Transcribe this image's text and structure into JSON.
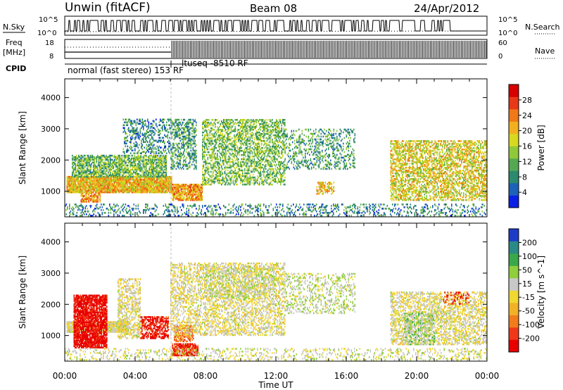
{
  "header": {
    "station": "Unwin (fitACF)",
    "beam": "Beam 08",
    "date": "24/Apr/2012"
  },
  "strip_labels": {
    "nsky": "N.Sky",
    "nsearch": "N.Search",
    "freq_line1": "Freq",
    "freq_line2": "[MHz]",
    "nave": "Nave",
    "cpid": "CPID"
  },
  "strip_axes": {
    "noise_left": [
      "10^5",
      "10^0"
    ],
    "noise_right": [
      "10^5",
      "10^0"
    ],
    "freq_left": [
      "18",
      "8"
    ],
    "nave_right": [
      "60",
      "0"
    ]
  },
  "cpid_labels": {
    "first": "normal (fast stereo) 153 RF",
    "second": "ltuseq -8510 RF"
  },
  "colors": {
    "power": [
      "#0a1fe6",
      "#1c62b8",
      "#2c8a6e",
      "#55a852",
      "#8fc93a",
      "#d8d820",
      "#f2b020",
      "#f07818",
      "#e83818",
      "#d80000"
    ],
    "velocity_neg_to_pos": [
      "#e80000",
      "#f03818",
      "#f27c1c",
      "#f2b228",
      "#f0d830",
      "#c8c8c8",
      "#8fce3c",
      "#3aa84a",
      "#2a8a86",
      "#1c3cc8"
    ]
  },
  "chart_data": [
    {
      "type": "heatmap",
      "title": "Power",
      "xlabel": "Time UT",
      "ylabel": "Slant Range [km]",
      "x_ticks": [
        "00:00",
        "04:00",
        "08:00",
        "12:00",
        "16:00",
        "20:00",
        "00:00"
      ],
      "x_range_hours": [
        0,
        24
      ],
      "y_ticks": [
        1000,
        2000,
        3000,
        4000
      ],
      "ylim": [
        180,
        4600
      ],
      "colorbar": {
        "label": "Power [dB]",
        "ticks": [
          4,
          8,
          12,
          16,
          20,
          24,
          28
        ],
        "range": [
          0,
          32
        ]
      },
      "regions": [
        {
          "t": [
            0.1,
            6.1
          ],
          "r": [
            950,
            1450
          ],
          "level": 20,
          "density": 0.95
        },
        {
          "t": [
            0.4,
            5.8
          ],
          "r": [
            1450,
            2150
          ],
          "level": 12,
          "density": 0.7
        },
        {
          "t": [
            0.9,
            2.0
          ],
          "r": [
            650,
            950
          ],
          "level": 22,
          "density": 0.75
        },
        {
          "t": [
            3.3,
            6.0
          ],
          "r": [
            2200,
            3300
          ],
          "level": 8,
          "density": 0.35
        },
        {
          "t": [
            6.1,
            7.8
          ],
          "r": [
            700,
            1200
          ],
          "level": 22,
          "density": 0.85
        },
        {
          "t": [
            6.0,
            7.5
          ],
          "r": [
            1700,
            3300
          ],
          "level": 10,
          "density": 0.45
        },
        {
          "t": [
            7.8,
            12.5
          ],
          "r": [
            1200,
            3300
          ],
          "level": 13,
          "density": 0.5
        },
        {
          "t": [
            12.5,
            16.5
          ],
          "r": [
            1700,
            3000
          ],
          "level": 10,
          "density": 0.3
        },
        {
          "t": [
            14.3,
            15.3
          ],
          "r": [
            900,
            1300
          ],
          "level": 20,
          "density": 0.5
        },
        {
          "t": [
            18.5,
            24.0
          ],
          "r": [
            700,
            2600
          ],
          "level": 18,
          "density": 0.55
        },
        {
          "t": [
            0.0,
            24.0
          ],
          "r": [
            200,
            600
          ],
          "level": 8,
          "density": 0.25
        }
      ]
    },
    {
      "type": "heatmap",
      "title": "Velocity",
      "xlabel": "Time UT",
      "ylabel": "Slant Range [km]",
      "x_ticks": [
        "00:00",
        "04:00",
        "08:00",
        "12:00",
        "16:00",
        "20:00",
        "00:00"
      ],
      "x_range_hours": [
        0,
        24
      ],
      "y_ticks": [
        1000,
        2000,
        3000,
        4000
      ],
      "ylim": [
        180,
        4600
      ],
      "colorbar": {
        "label": "Velocity [m s^-1]",
        "ticks": [
          -200,
          -100,
          -50,
          -15,
          15,
          50,
          100,
          200
        ],
        "range": [
          -250,
          250
        ]
      },
      "regions": [
        {
          "t": [
            0.1,
            3.6
          ],
          "r": [
            1100,
            1450
          ],
          "level": 0,
          "density": 0.95
        },
        {
          "t": [
            0.5,
            2.4
          ],
          "r": [
            600,
            2300
          ],
          "level": -220,
          "density": 0.85
        },
        {
          "t": [
            3.0,
            4.3
          ],
          "r": [
            900,
            2800
          ],
          "level": 0,
          "density": 0.5
        },
        {
          "t": [
            4.3,
            5.9
          ],
          "r": [
            900,
            1600
          ],
          "level": -200,
          "density": 0.6
        },
        {
          "t": [
            6.1,
            7.6
          ],
          "r": [
            350,
            750
          ],
          "level": -180,
          "density": 0.85
        },
        {
          "t": [
            6.2,
            7.3
          ],
          "r": [
            800,
            1300
          ],
          "level": -130,
          "density": 0.65
        },
        {
          "t": [
            6.0,
            12.5
          ],
          "r": [
            1000,
            3300
          ],
          "level": 0,
          "density": 0.45
        },
        {
          "t": [
            8.0,
            12.0
          ],
          "r": [
            2200,
            3200
          ],
          "level": 30,
          "density": 0.3
        },
        {
          "t": [
            12.5,
            16.5
          ],
          "r": [
            1700,
            3000
          ],
          "level": 40,
          "density": 0.3
        },
        {
          "t": [
            18.5,
            24.0
          ],
          "r": [
            700,
            2400
          ],
          "level": 0,
          "density": 0.5
        },
        {
          "t": [
            19.3,
            21.0
          ],
          "r": [
            700,
            1700
          ],
          "level": 60,
          "density": 0.45
        },
        {
          "t": [
            21.5,
            23.0
          ],
          "r": [
            2000,
            2400
          ],
          "level": -180,
          "density": 0.3
        },
        {
          "t": [
            0.0,
            24.0
          ],
          "r": [
            200,
            600
          ],
          "level": 15,
          "density": 0.22
        }
      ]
    }
  ],
  "axis_title_x": "Time UT"
}
